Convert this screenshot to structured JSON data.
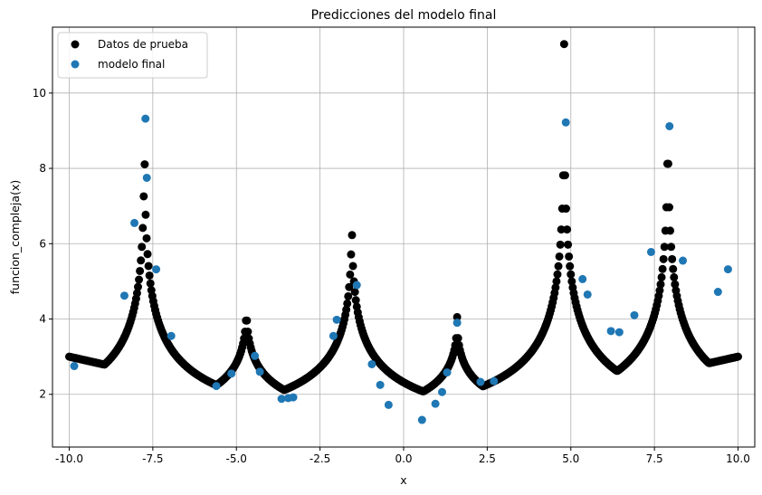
{
  "chart_data": {
    "type": "scatter",
    "title": "Predicciones del modelo final",
    "xlabel": "x",
    "ylabel": "funcion_compleja(x)",
    "xlim": [
      -10.5,
      10.5
    ],
    "ylim": [
      0.6,
      11.75
    ],
    "xticks": [
      "-10.0",
      "-7.5",
      "-5.0",
      "-2.5",
      "0.0",
      "2.5",
      "5.0",
      "7.5",
      "10.0"
    ],
    "xtick_values": [
      -10,
      -7.5,
      -5,
      -2.5,
      0,
      2.5,
      5,
      7.5,
      10
    ],
    "yticks": [
      "2",
      "4",
      "6",
      "8",
      "10"
    ],
    "ytick_values": [
      2,
      4,
      6,
      8,
      10
    ],
    "grid": true,
    "legend_position": "top-left",
    "series": [
      {
        "name": "Datos de prueba",
        "color": "#000000",
        "kind": "dense-curve",
        "x_range": [
          -10,
          10
        ]
      },
      {
        "name": "modelo final",
        "color": "#1f77b4",
        "points": [
          [
            -9.85,
            2.75
          ],
          [
            -8.35,
            4.62
          ],
          [
            -8.05,
            6.55
          ],
          [
            -7.72,
            9.32
          ],
          [
            -7.68,
            7.75
          ],
          [
            -7.4,
            5.32
          ],
          [
            -6.95,
            3.55
          ],
          [
            -5.6,
            2.22
          ],
          [
            -5.15,
            2.55
          ],
          [
            -4.45,
            3.02
          ],
          [
            -4.3,
            2.6
          ],
          [
            -3.65,
            1.88
          ],
          [
            -3.45,
            1.9
          ],
          [
            -3.3,
            1.92
          ],
          [
            -2.1,
            3.55
          ],
          [
            -2.0,
            3.98
          ],
          [
            -1.4,
            4.9
          ],
          [
            -0.95,
            2.8
          ],
          [
            -0.7,
            2.25
          ],
          [
            -0.45,
            1.72
          ],
          [
            0.55,
            1.32
          ],
          [
            0.95,
            1.75
          ],
          [
            1.15,
            2.06
          ],
          [
            1.3,
            2.58
          ],
          [
            1.6,
            3.9
          ],
          [
            2.3,
            2.33
          ],
          [
            2.7,
            2.35
          ],
          [
            4.85,
            9.22
          ],
          [
            5.35,
            5.06
          ],
          [
            5.5,
            4.65
          ],
          [
            6.2,
            3.68
          ],
          [
            6.45,
            3.65
          ],
          [
            6.9,
            4.1
          ],
          [
            7.4,
            5.78
          ],
          [
            7.95,
            9.12
          ],
          [
            8.35,
            5.55
          ],
          [
            9.4,
            4.72
          ],
          [
            9.7,
            5.32
          ]
        ]
      }
    ]
  }
}
